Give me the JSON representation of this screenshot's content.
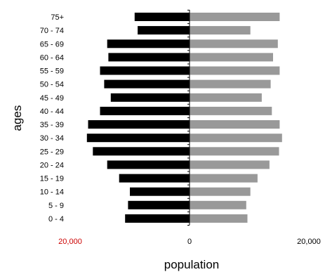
{
  "chart_data": {
    "type": "bar",
    "orientation": "horizontal",
    "layout": "population-pyramid",
    "categories": [
      "75+",
      "70 - 74",
      "65 - 69",
      "60 - 64",
      "55 - 59",
      "50 - 54",
      "45 - 49",
      "40 - 44",
      "35 - 39",
      "30 - 34",
      "25 - 29",
      "20 - 24",
      "15 - 19",
      "10 - 14",
      "5 - 9",
      "0 - 4"
    ],
    "series": [
      {
        "color": "#000000",
        "side": "left",
        "values": [
          9200,
          8700,
          13800,
          13600,
          15000,
          14300,
          13200,
          15000,
          17000,
          17200,
          16200,
          13800,
          11800,
          10000,
          10300,
          10800
        ]
      },
      {
        "color": "#999999",
        "side": "right",
        "values": [
          15100,
          10200,
          14800,
          14000,
          15100,
          13600,
          12100,
          13800,
          15100,
          15500,
          15000,
          13400,
          11400,
          10200,
          9500,
          9700
        ]
      }
    ],
    "xlabel": "population",
    "ylabel": "ages",
    "xlim": [
      -20000,
      20000
    ],
    "xticks": [
      {
        "value": -20000,
        "label": "20,000",
        "color": "#cc0000"
      },
      {
        "value": 0,
        "label": "0",
        "color": "#000000"
      },
      {
        "value": 20000,
        "label": "20,000",
        "color": "#000000"
      }
    ],
    "grid": false,
    "legend": "none"
  }
}
